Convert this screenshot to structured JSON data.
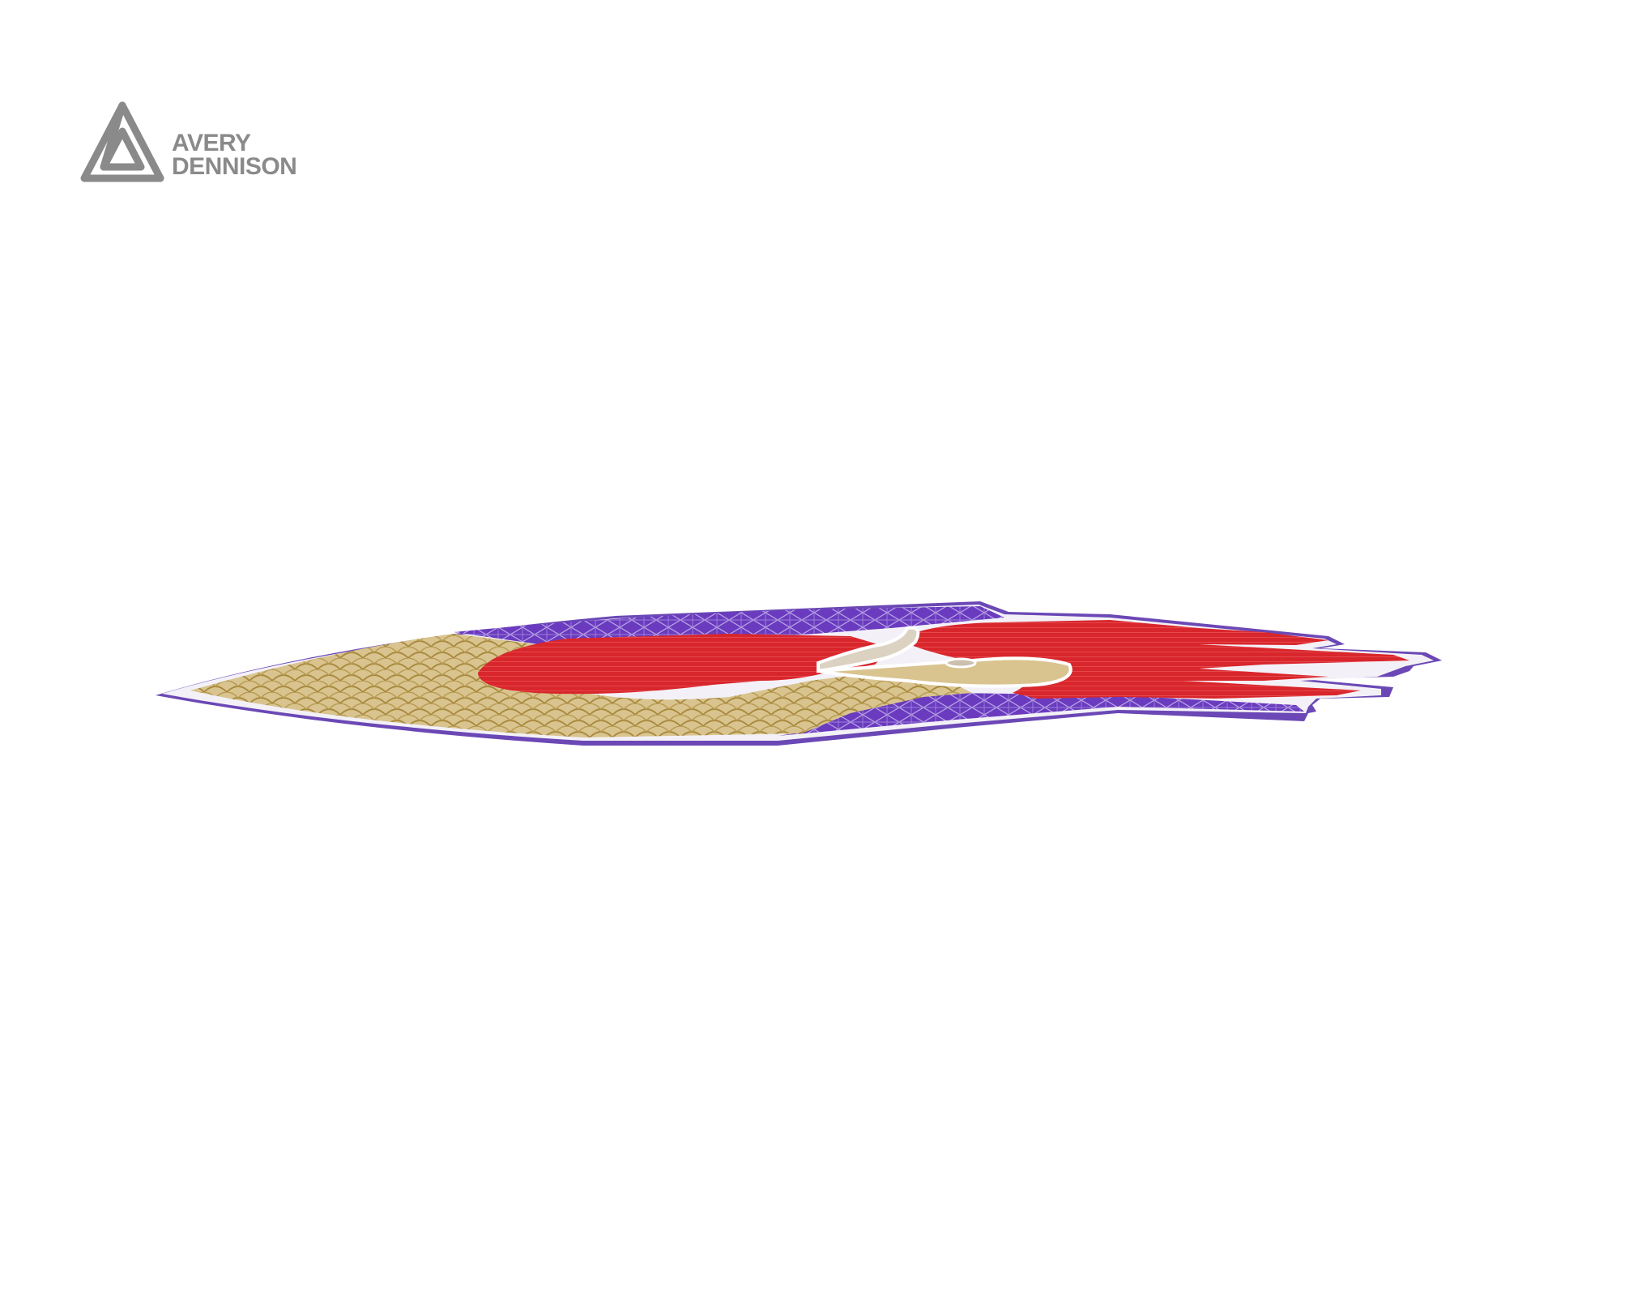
{
  "brand": {
    "line1": "AVERY",
    "line2": "DENNISON",
    "logo_icon": "avery-dennison-triangle-logo",
    "logo_color": "#8a8a8a"
  },
  "artwork": {
    "subject": "vinyl-wrap-graphic-perspective",
    "colors": {
      "outline": "#6b48b5",
      "border": "#e8e4f0",
      "gold": "#c9ac6c",
      "red": "#d7262c",
      "purple": "#5b2fb0",
      "cream": "#d9cfbf"
    }
  }
}
